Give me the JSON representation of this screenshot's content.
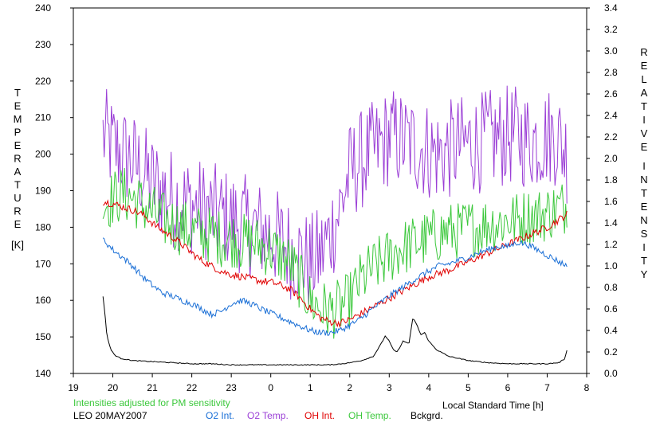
{
  "colors": {
    "o2_int": "#1a6fd6",
    "o2_temp": "#9b3fd6",
    "oh_int": "#e00000",
    "oh_temp": "#3cc83c",
    "bckgrd": "#000000",
    "note": "#3cc83c"
  },
  "footer": {
    "note": "Intensities adjusted for PM sensitivity",
    "station": "LEO 20MAY2007",
    "xlabel": "Local Standard Time [h]",
    "legend": [
      "O2 Int.",
      "O2 Temp.",
      "OH Int.",
      "OH Temp.",
      "Bckgrd."
    ]
  },
  "chart_data": {
    "type": "line",
    "title": "",
    "xlabel": "Local Standard Time [h]",
    "ylabel_left": "TEMPERATURE [K]",
    "ylabel_right": "RELATIVE INTENSITY",
    "ylabel_left_letters": [
      "T",
      "E",
      "M",
      "P",
      "E",
      "R",
      "A",
      "T",
      "U",
      "R",
      "E"
    ],
    "ylabel_left_unit": "[K]",
    "ylabel_right_letters_1": [
      "R",
      "E",
      "L",
      "A",
      "T",
      "I",
      "V",
      "E"
    ],
    "ylabel_right_letters_2": [
      "I",
      "N",
      "T",
      "E",
      "N",
      "S",
      "I",
      "T",
      "Y"
    ],
    "x_range": [
      19,
      32
    ],
    "x_ticks": [
      19,
      20,
      21,
      22,
      23,
      24,
      25,
      26,
      27,
      28,
      29,
      30,
      31,
      32
    ],
    "x_tick_labels": [
      "19",
      "20",
      "21",
      "22",
      "23",
      "0",
      "1",
      "2",
      "3",
      "4",
      "5",
      "6",
      "7",
      "8"
    ],
    "y_left_range": [
      140,
      240
    ],
    "y_left_ticks": [
      140,
      150,
      160,
      170,
      180,
      190,
      200,
      210,
      220,
      230,
      240
    ],
    "y_right_range": [
      0.0,
      3.4
    ],
    "y_right_ticks": [
      "0.0",
      "0.2",
      "0.4",
      "0.6",
      "0.8",
      "1.0",
      "1.2",
      "1.4",
      "1.6",
      "1.8",
      "2.0",
      "2.2",
      "2.4",
      "2.6",
      "2.8",
      "3.0",
      "3.2",
      "3.4"
    ],
    "grid": false,
    "series": [
      {
        "name": "O2 Temp.",
        "axis": "left",
        "x": [
          19.75,
          20.0,
          20.25,
          20.5,
          20.75,
          21.0,
          21.25,
          21.5,
          21.75,
          22.0,
          22.25,
          22.5,
          22.75,
          23.0,
          23.25,
          23.5,
          23.75,
          24.0,
          24.25,
          24.5,
          24.75,
          25.0,
          25.25,
          25.5,
          25.75,
          26.0,
          26.25,
          26.5,
          26.75,
          27.0,
          27.25,
          27.5,
          27.75,
          28.0,
          28.25,
          28.5,
          28.75,
          29.0,
          29.25,
          29.5,
          29.75,
          30.0,
          30.25,
          30.5,
          30.75,
          31.0,
          31.25,
          31.5
        ],
        "y": [
          205,
          202,
          200,
          198,
          195,
          192,
          190,
          188,
          187,
          186,
          185,
          184,
          183,
          182,
          181,
          180,
          179,
          178,
          176,
          174,
          172,
          170,
          172,
          178,
          185,
          195,
          198,
          200,
          202,
          205,
          204,
          203,
          202,
          201,
          200,
          201,
          202,
          203,
          203,
          204,
          204,
          205,
          205,
          204,
          204,
          205,
          205,
          200
        ],
        "amp": 14
      },
      {
        "name": "OH Temp.",
        "axis": "left",
        "x": [
          19.75,
          20.0,
          20.25,
          20.5,
          20.75,
          21.0,
          21.25,
          21.5,
          21.75,
          22.0,
          22.25,
          22.5,
          22.75,
          23.0,
          23.25,
          23.5,
          23.75,
          24.0,
          24.25,
          24.5,
          24.75,
          25.0,
          25.25,
          25.5,
          25.75,
          26.0,
          26.25,
          26.5,
          26.75,
          27.0,
          27.25,
          27.5,
          27.75,
          28.0,
          28.25,
          28.5,
          28.75,
          29.0,
          29.25,
          29.5,
          29.75,
          30.0,
          30.25,
          30.5,
          30.75,
          31.0,
          31.25,
          31.5
        ],
        "y": [
          186,
          188,
          189,
          188,
          186,
          184,
          182,
          181,
          180,
          179,
          178,
          178,
          177,
          177,
          176,
          176,
          175,
          174,
          172,
          170,
          165,
          160,
          158,
          157,
          158,
          160,
          165,
          168,
          170,
          172,
          174,
          175,
          176,
          177,
          178,
          179,
          179,
          180,
          180,
          181,
          181,
          182,
          182,
          183,
          183,
          184,
          185,
          186
        ],
        "amp": 8
      },
      {
        "name": "OH Int.",
        "axis": "right",
        "x": [
          19.75,
          20.0,
          20.25,
          20.5,
          20.75,
          21.0,
          21.25,
          21.5,
          21.75,
          22.0,
          22.25,
          22.5,
          22.75,
          23.0,
          23.25,
          23.5,
          23.75,
          24.0,
          24.25,
          24.5,
          24.75,
          25.0,
          25.25,
          25.5,
          25.75,
          26.0,
          26.25,
          26.5,
          26.75,
          27.0,
          27.25,
          27.5,
          27.75,
          28.0,
          28.25,
          28.5,
          28.75,
          29.0,
          29.25,
          29.5,
          29.75,
          30.0,
          30.25,
          30.5,
          30.75,
          31.0,
          31.25,
          31.5
        ],
        "y": [
          1.6,
          1.58,
          1.55,
          1.52,
          1.48,
          1.4,
          1.33,
          1.27,
          1.2,
          1.12,
          1.05,
          1.0,
          0.95,
          0.92,
          0.9,
          0.88,
          0.86,
          0.85,
          0.82,
          0.78,
          0.7,
          0.6,
          0.52,
          0.48,
          0.47,
          0.5,
          0.55,
          0.6,
          0.65,
          0.7,
          0.75,
          0.8,
          0.85,
          0.9,
          0.93,
          0.96,
          1.0,
          1.04,
          1.08,
          1.12,
          1.16,
          1.2,
          1.24,
          1.28,
          1.32,
          1.36,
          1.42,
          1.48
        ],
        "amp": 0.035
      },
      {
        "name": "O2 Int.",
        "axis": "right",
        "x": [
          19.75,
          20.0,
          20.25,
          20.5,
          20.75,
          21.0,
          21.25,
          21.5,
          21.75,
          22.0,
          22.25,
          22.5,
          22.75,
          23.0,
          23.25,
          23.5,
          23.75,
          24.0,
          24.25,
          24.5,
          24.75,
          25.0,
          25.25,
          25.5,
          25.75,
          26.0,
          26.25,
          26.5,
          26.75,
          27.0,
          27.25,
          27.5,
          27.75,
          28.0,
          28.25,
          28.5,
          28.75,
          29.0,
          29.25,
          29.5,
          29.75,
          30.0,
          30.25,
          30.5,
          30.75,
          31.0,
          31.25,
          31.5
        ],
        "y": [
          1.25,
          1.15,
          1.08,
          1.0,
          0.9,
          0.82,
          0.75,
          0.72,
          0.68,
          0.65,
          0.6,
          0.55,
          0.58,
          0.65,
          0.68,
          0.65,
          0.6,
          0.56,
          0.52,
          0.48,
          0.44,
          0.4,
          0.38,
          0.38,
          0.4,
          0.45,
          0.5,
          0.58,
          0.65,
          0.72,
          0.78,
          0.84,
          0.9,
          0.95,
          1.0,
          1.02,
          1.05,
          1.08,
          1.12,
          1.15,
          1.18,
          1.18,
          1.22,
          1.2,
          1.15,
          1.1,
          1.05,
          1.0
        ],
        "amp": 0.03
      },
      {
        "name": "Bckgrd.",
        "axis": "right",
        "x": [
          19.75,
          19.8,
          19.85,
          19.95,
          20.05,
          20.2,
          20.5,
          21.0,
          21.5,
          22.0,
          22.5,
          23.0,
          23.5,
          24.0,
          24.5,
          25.0,
          25.5,
          25.8,
          26.0,
          26.3,
          26.6,
          26.8,
          26.9,
          27.0,
          27.1,
          27.2,
          27.35,
          27.5,
          27.6,
          27.7,
          27.8,
          27.9,
          28.0,
          28.2,
          28.5,
          29.0,
          29.5,
          30.0,
          30.5,
          31.0,
          31.3,
          31.45,
          31.5
        ],
        "y": [
          0.72,
          0.55,
          0.35,
          0.22,
          0.17,
          0.14,
          0.12,
          0.11,
          0.1,
          0.09,
          0.09,
          0.08,
          0.08,
          0.08,
          0.08,
          0.08,
          0.08,
          0.09,
          0.1,
          0.12,
          0.16,
          0.28,
          0.35,
          0.3,
          0.22,
          0.2,
          0.3,
          0.28,
          0.52,
          0.45,
          0.36,
          0.38,
          0.3,
          0.22,
          0.16,
          0.12,
          0.1,
          0.09,
          0.09,
          0.09,
          0.1,
          0.14,
          0.22
        ],
        "amp": 0.004
      }
    ]
  }
}
